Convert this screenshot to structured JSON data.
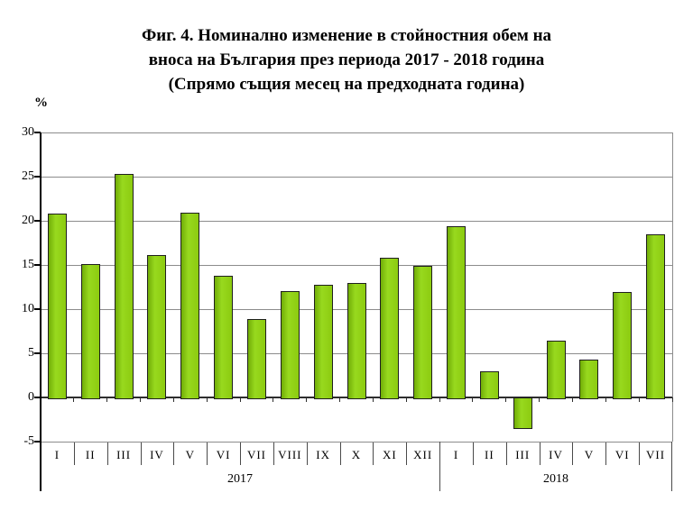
{
  "title": {
    "lines": [
      "Фиг. 4. Номинално изменение в стойностния обем на",
      "вноса на България през периода 2017 - 2018 година",
      "(Спрямо същия месец на предходната година)"
    ]
  },
  "chart_data": {
    "type": "bar",
    "title": "Фиг. 4. Номинално изменение в стойностния обем на вноса на България през периода 2017 - 2018 година (Спрямо същия месец на предходната година)",
    "ylabel": "%",
    "xlabel": "",
    "ylim": [
      -5,
      30
    ],
    "ytick_step": 5,
    "grid": true,
    "legend": false,
    "bar_color": "#8ccb10",
    "bar_border_color": "#1f1f1f",
    "gridline_color": "#8c8c8c",
    "groups": [
      {
        "year": "2017",
        "categories": [
          "I",
          "II",
          "III",
          "IV",
          "V",
          "VI",
          "VII",
          "VIII",
          "IX",
          "X",
          "XI",
          "XII"
        ],
        "values": [
          20.8,
          15.1,
          25.3,
          16.1,
          20.9,
          13.8,
          8.9,
          12.0,
          12.8,
          13.0,
          15.8,
          14.9
        ]
      },
      {
        "year": "2018",
        "categories": [
          "I",
          "II",
          "III",
          "IV",
          "V",
          "VI",
          "VII"
        ],
        "values": [
          19.4,
          3.0,
          -3.6,
          6.4,
          4.3,
          11.9,
          18.5
        ]
      }
    ]
  }
}
